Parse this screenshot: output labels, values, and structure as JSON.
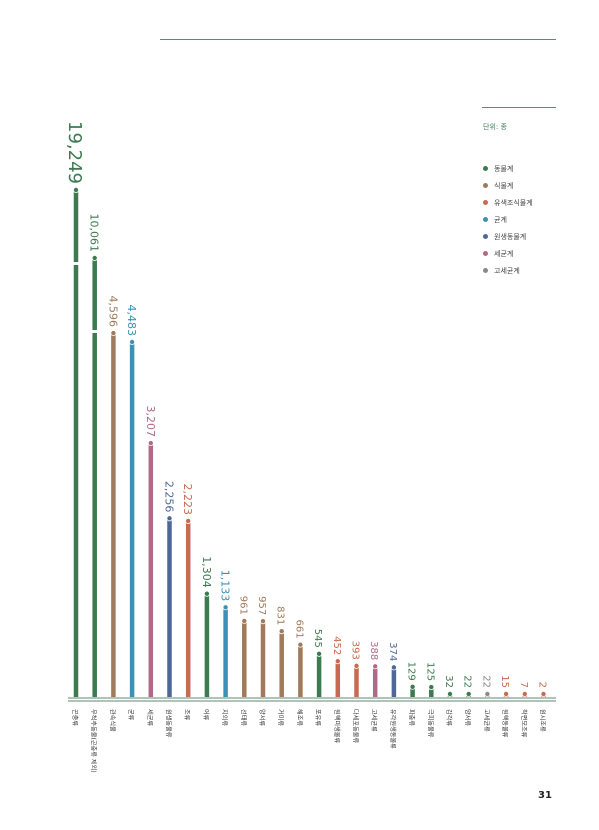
{
  "page_number": "31",
  "unit_label": "단위: 종",
  "legend": [
    {
      "label": "동물계",
      "color": "#3d7a4f"
    },
    {
      "label": "식물계",
      "color": "#a07a5a"
    },
    {
      "label": "유색조식물계",
      "color": "#c96a4f"
    },
    {
      "label": "균계",
      "color": "#3a92b5"
    },
    {
      "label": "원생동물계",
      "color": "#4f6796"
    },
    {
      "label": "세균계",
      "color": "#b06a88"
    },
    {
      "label": "고세균계",
      "color": "#8a8a8a"
    }
  ],
  "chart_data": {
    "type": "bar",
    "title": "",
    "xlabel": "",
    "ylabel": "",
    "categories": [
      "곤충류",
      "무척추동물(곤충류 제외)",
      "관속식물",
      "균류",
      "세균류",
      "원생동물류",
      "조류",
      "어류",
      "지의류",
      "선태류",
      "양서류",
      "거미류",
      "해조류",
      "포유류",
      "원핵미생물류",
      "다세포동물류",
      "고세균류",
      "유각원생동물류",
      "파충류",
      "극피동물류",
      "갑각류",
      "양서류",
      "고세균류",
      "원핵동물류",
      "착편모조류",
      "원시조류"
    ],
    "values": [
      19249,
      10061,
      4596,
      4483,
      3207,
      2256,
      2223,
      1304,
      1133,
      961,
      957,
      831,
      661,
      545,
      452,
      393,
      388,
      374,
      129,
      125,
      32,
      22,
      22,
      15,
      7,
      2
    ],
    "value_labels": [
      "19,249",
      "10,061",
      "4,596",
      "4,483",
      "3,207",
      "2,256",
      "2,223",
      "1,304",
      "1,133",
      "961",
      "957",
      "831",
      "661",
      "545",
      "452",
      "393",
      "388",
      "374",
      "129",
      "125",
      "32",
      "22",
      "22",
      "15",
      "7",
      "2"
    ],
    "colors": [
      "#3d7a4f",
      "#3d7a4f",
      "#a07a5a",
      "#3a92b5",
      "#b06a88",
      "#4f6796",
      "#c96a4f",
      "#3d7a4f",
      "#3a92b5",
      "#a07a5a",
      "#a07a5a",
      "#a07a5a",
      "#a07a5a",
      "#3d7a4f",
      "#c96a4f",
      "#c96a4f",
      "#b06a88",
      "#4f6796",
      "#3d7a4f",
      "#3d7a4f",
      "#3d7a4f",
      "#3d7a4f",
      "#8a8a8a",
      "#c96a4f",
      "#c96a4f",
      "#c96a4f"
    ],
    "axis_break": true,
    "legend_position": "top-right"
  }
}
